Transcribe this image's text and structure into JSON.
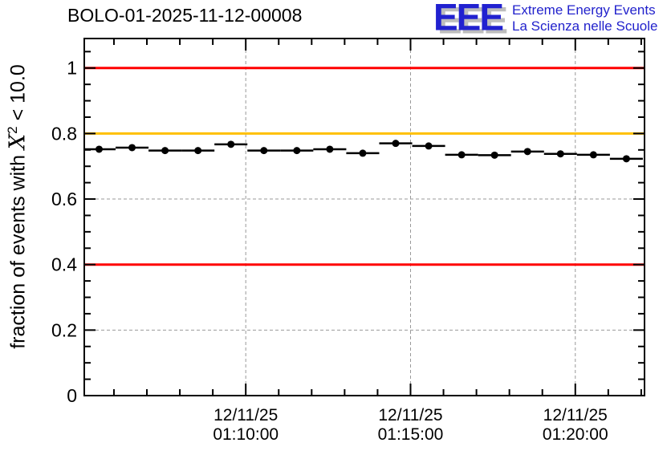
{
  "header": {
    "title": "BOLO-01-2025-11-12-00008"
  },
  "logo": {
    "acronym": "EEE",
    "line1": "Extreme Energy Events",
    "line2": "La Scienza nelle Scuole",
    "color": "#2222cc",
    "shadow_color": "#bdbdbd"
  },
  "chart_data": {
    "type": "scatter",
    "title": "BOLO-01-2025-11-12-00008",
    "ylabel_prefix": "fraction of events with ",
    "ylabel_symbol": "X",
    "ylabel_sup": "2",
    "ylabel_suffix": " < 10.0",
    "xlabel": "",
    "ylim": [
      0,
      1.09
    ],
    "xlim_minutes": [
      0.1,
      17.1
    ],
    "grid": true,
    "grid_color": "#999999",
    "frame_color": "#000000",
    "y_major_ticks": [
      {
        "value": 0,
        "label": "0"
      },
      {
        "value": 0.2,
        "label": "0.2"
      },
      {
        "value": 0.4,
        "label": "0.4"
      },
      {
        "value": 0.6,
        "label": "0.6"
      },
      {
        "value": 0.8,
        "label": "0.8"
      },
      {
        "value": 1.0,
        "label": "1"
      }
    ],
    "y_minor_step": 0.05,
    "x_major_ticks": [
      {
        "t": 5,
        "date": "12/11/25",
        "time": "01:10:00"
      },
      {
        "t": 10,
        "date": "12/11/25",
        "time": "01:15:00"
      },
      {
        "t": 15,
        "date": "12/11/25",
        "time": "01:20:00"
      }
    ],
    "x_minor_step_minutes": 1,
    "reference_lines": [
      {
        "value": 1.0,
        "color": "#ff0000"
      },
      {
        "value": 0.8,
        "color": "#ffc000"
      },
      {
        "value": 0.4,
        "color": "#ff0000"
      }
    ],
    "marker_color": "#000000",
    "points": [
      {
        "t": 0.55,
        "value": 0.752,
        "xerr": 0.5
      },
      {
        "t": 1.55,
        "value": 0.757,
        "xerr": 0.5
      },
      {
        "t": 2.55,
        "value": 0.748,
        "xerr": 0.5
      },
      {
        "t": 3.55,
        "value": 0.748,
        "xerr": 0.5
      },
      {
        "t": 4.55,
        "value": 0.767,
        "xerr": 0.5
      },
      {
        "t": 5.55,
        "value": 0.748,
        "xerr": 0.5
      },
      {
        "t": 6.55,
        "value": 0.748,
        "xerr": 0.5
      },
      {
        "t": 7.55,
        "value": 0.752,
        "xerr": 0.5
      },
      {
        "t": 8.55,
        "value": 0.74,
        "xerr": 0.5
      },
      {
        "t": 9.55,
        "value": 0.77,
        "xerr": 0.5
      },
      {
        "t": 10.55,
        "value": 0.762,
        "xerr": 0.5
      },
      {
        "t": 11.55,
        "value": 0.735,
        "xerr": 0.5
      },
      {
        "t": 12.55,
        "value": 0.734,
        "xerr": 0.5
      },
      {
        "t": 13.55,
        "value": 0.745,
        "xerr": 0.5
      },
      {
        "t": 14.55,
        "value": 0.738,
        "xerr": 0.5
      },
      {
        "t": 15.55,
        "value": 0.735,
        "xerr": 0.5
      },
      {
        "t": 16.55,
        "value": 0.723,
        "xerr": 0.5
      }
    ]
  }
}
